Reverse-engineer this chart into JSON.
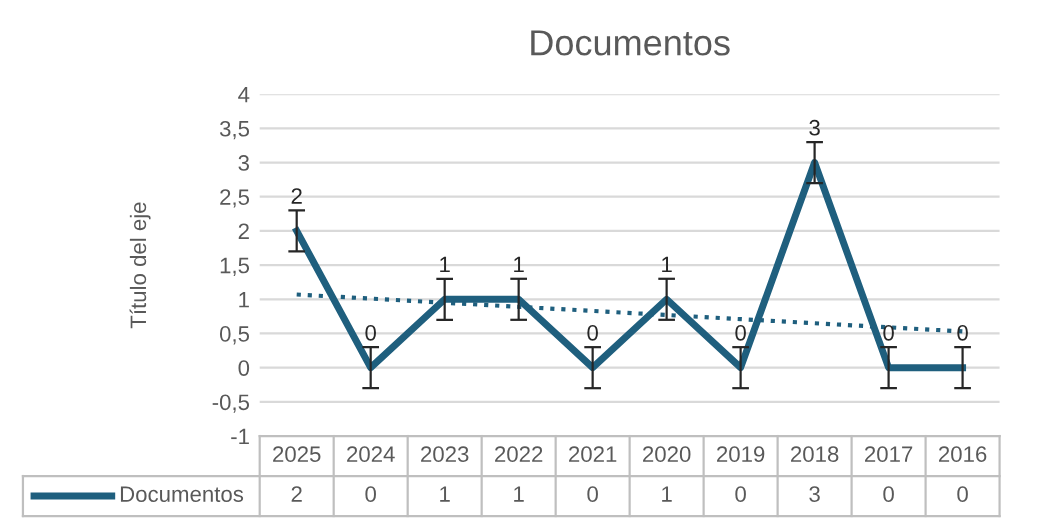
{
  "chart_data": {
    "type": "line",
    "title": "Documentos",
    "ylabel": "Título del eje",
    "categories": [
      "2025",
      "2024",
      "2023",
      "2022",
      "2021",
      "2020",
      "2019",
      "2018",
      "2017",
      "2016"
    ],
    "series": [
      {
        "name": "Documentos",
        "color": "#1f5f7e",
        "values": [
          2,
          0,
          1,
          1,
          0,
          1,
          0,
          3,
          0,
          0
        ],
        "errors": [
          0.3,
          0.3,
          0.3,
          0.3,
          0.3,
          0.3,
          0.3,
          0.3,
          0.3,
          0.3
        ],
        "line_style": "solid",
        "value_labels": [
          "2",
          "0",
          "1",
          "1",
          "0",
          "1",
          "0",
          "3",
          "0",
          "0"
        ]
      },
      {
        "type": "line",
        "color": "#1f5f7e",
        "line_style": "dotted",
        "values": [
          1.07,
          1.01,
          0.95,
          0.89,
          0.83,
          0.77,
          0.71,
          0.65,
          0.59,
          0.53
        ]
      }
    ],
    "ylim": [
      -1,
      4
    ],
    "yticks": [
      -1,
      {
        "value": -0.5,
        "label": "-0,5"
      },
      0,
      {
        "value": 0.5,
        "label": "0,5"
      },
      1,
      {
        "value": 1.5,
        "label": "1,5"
      },
      2,
      {
        "value": 2.5,
        "label": "2,5"
      },
      3,
      {
        "value": 3.5,
        "label": "3,5"
      },
      4
    ],
    "grid": "y",
    "marker": "none"
  }
}
